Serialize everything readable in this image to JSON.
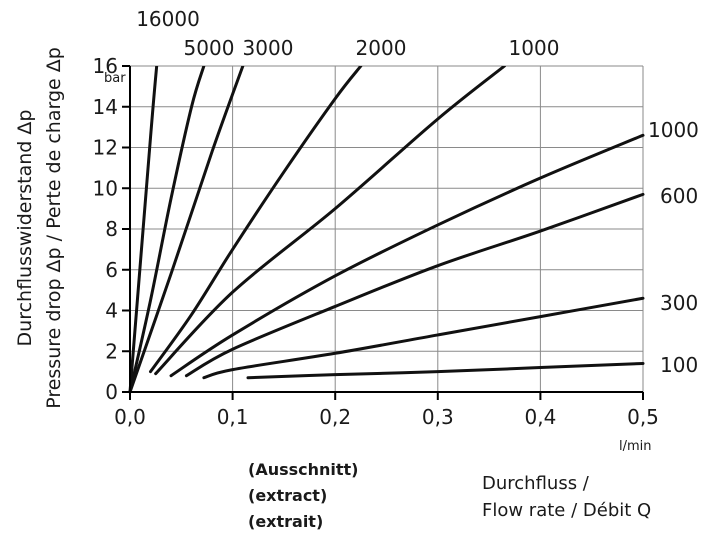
{
  "chart_data": {
    "type": "line",
    "title": "",
    "ylabel": [
      "Durchflusswiderstand Δp",
      "Pressure drop Δp / Perte de charge Δp"
    ],
    "y_unit": "bar",
    "xlabel": [
      "Durchfluss /",
      "Flow rate / Débit Q"
    ],
    "x_unit": "l/min",
    "xlim": [
      0,
      0.5
    ],
    "ylim": [
      0,
      16
    ],
    "x_ticks": [
      "0,0",
      "0,1",
      "0,2",
      "0,3",
      "0,4",
      "0,5"
    ],
    "y_ticks": [
      "0",
      "2",
      "4",
      "6",
      "8",
      "10",
      "12",
      "14",
      "16"
    ],
    "grid": true,
    "x_note": [
      "(Ausschnitt)",
      "(extract)",
      "(extrait)"
    ],
    "series": [
      {
        "name": "16000",
        "x": [
          0,
          0.02,
          0.026
        ],
        "y": [
          0,
          12.5,
          16
        ]
      },
      {
        "name": "5000",
        "x": [
          0,
          0.02,
          0.04,
          0.06,
          0.072
        ],
        "y": [
          0,
          4.5,
          9.5,
          14,
          16
        ]
      },
      {
        "name": "3000",
        "x": [
          0,
          0.04,
          0.08,
          0.11
        ],
        "y": [
          0,
          5.8,
          11.8,
          16
        ]
      },
      {
        "name": "2000",
        "x": [
          0.02,
          0.06,
          0.1,
          0.15,
          0.2,
          0.225
        ],
        "y": [
          1,
          3.8,
          7,
          10.8,
          14.4,
          16
        ]
      },
      {
        "name": "1000",
        "x": [
          0.025,
          0.1,
          0.2,
          0.3,
          0.365
        ],
        "y": [
          0.9,
          4.9,
          9,
          13.4,
          16
        ]
      },
      {
        "name": "1000",
        "x": [
          0.04,
          0.1,
          0.2,
          0.3,
          0.4,
          0.5
        ],
        "y": [
          0.8,
          2.8,
          5.7,
          8.2,
          10.5,
          12.6
        ]
      },
      {
        "name": "600",
        "x": [
          0.055,
          0.1,
          0.2,
          0.3,
          0.4,
          0.5
        ],
        "y": [
          0.8,
          2.1,
          4.2,
          6.2,
          7.9,
          9.7
        ]
      },
      {
        "name": "300",
        "x": [
          0.072,
          0.1,
          0.2,
          0.3,
          0.4,
          0.5
        ],
        "y": [
          0.7,
          1.1,
          1.9,
          2.8,
          3.7,
          4.6
        ]
      },
      {
        "name": "100",
        "x": [
          0.115,
          0.2,
          0.3,
          0.4,
          0.5
        ],
        "y": [
          0.7,
          0.85,
          1.0,
          1.2,
          1.4
        ]
      }
    ]
  }
}
